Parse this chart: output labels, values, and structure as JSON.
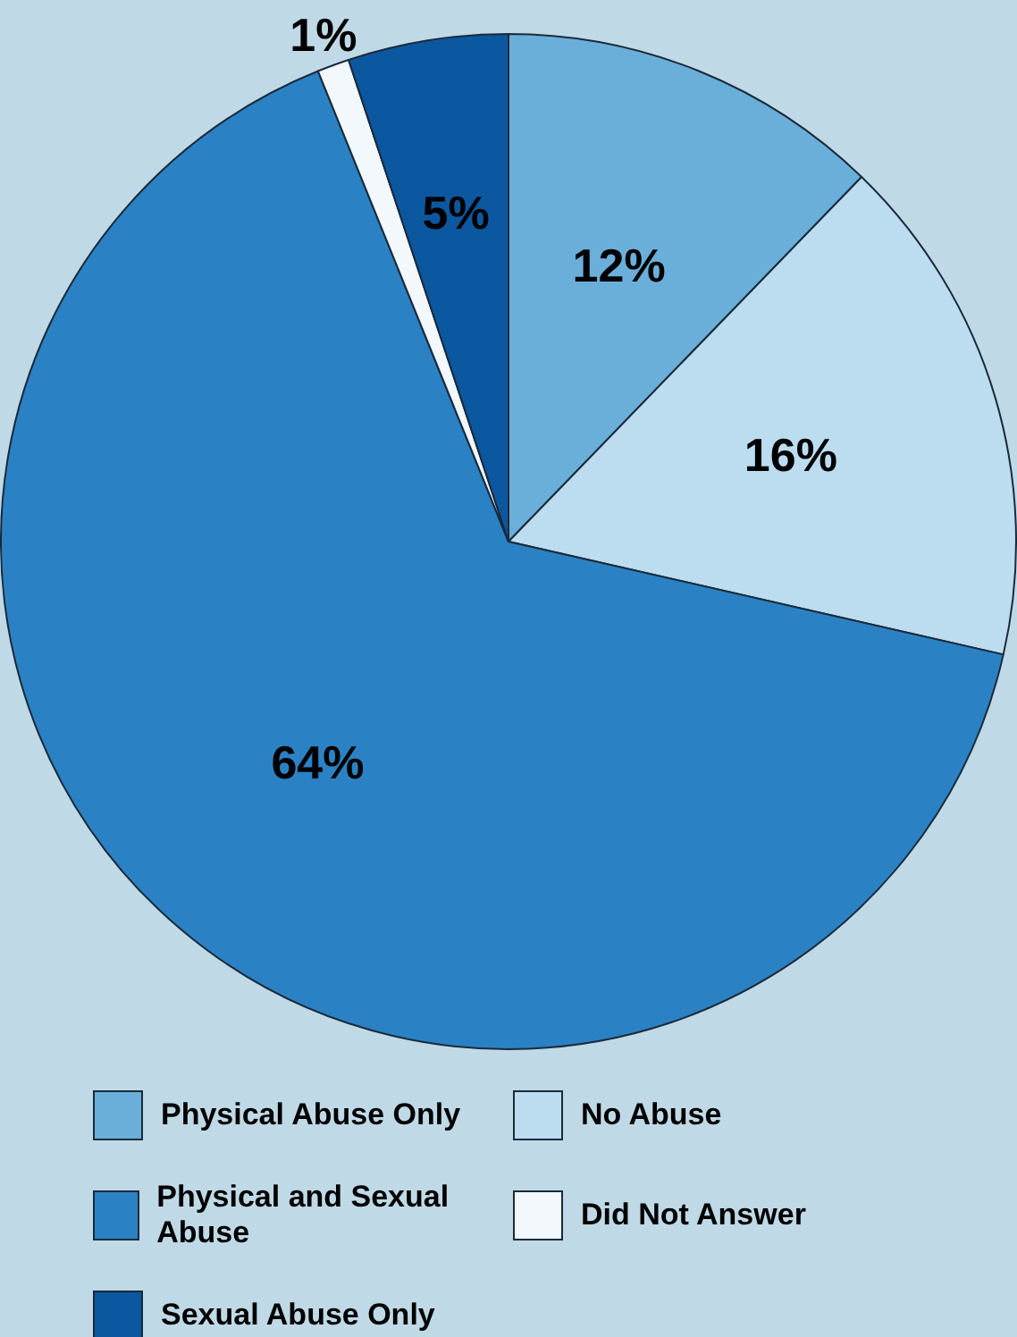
{
  "chart_data": {
    "type": "pie",
    "categories": [
      "Physical Abuse Only",
      "No Abuse",
      "Physical and Sexual Abuse",
      "Did Not Answer",
      "Sexual Abuse Only"
    ],
    "values": [
      12,
      16,
      64,
      1,
      5
    ],
    "value_labels": [
      "12%",
      "16%",
      "64%",
      "1%",
      "5%"
    ],
    "colors": [
      "#6aafd9",
      "#bcdcf0",
      "#2a82c4",
      "#f2f8fc",
      "#0b58a0"
    ],
    "legend": "bottom"
  }
}
